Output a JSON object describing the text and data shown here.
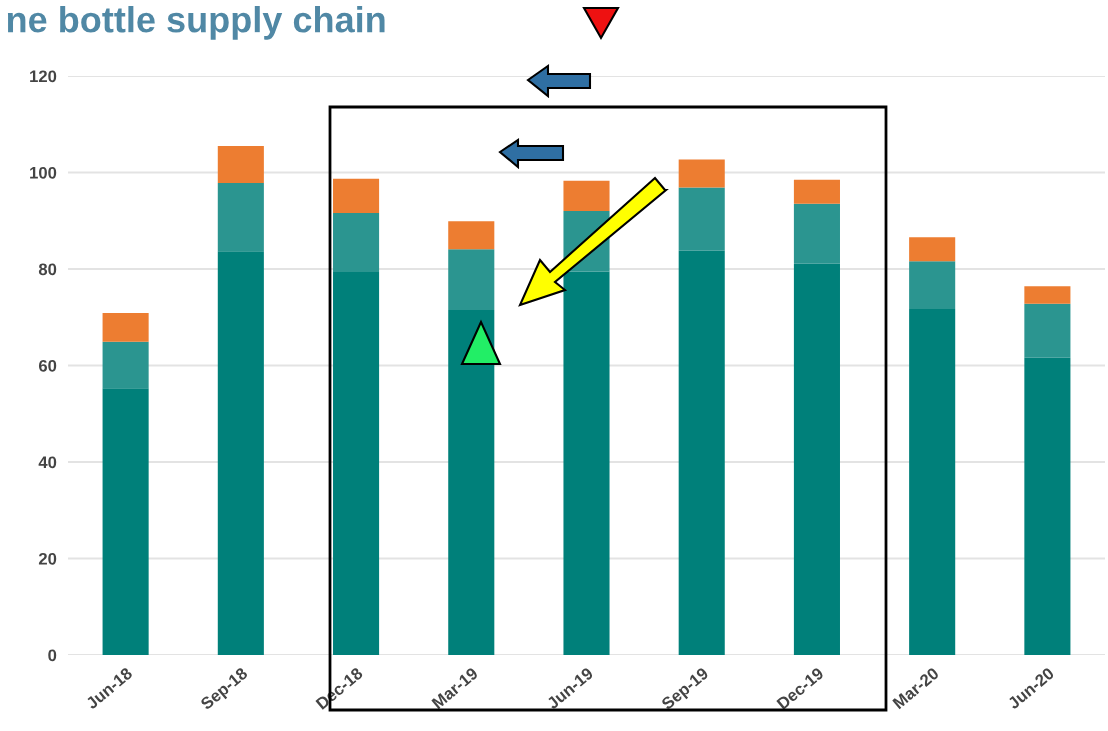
{
  "chart_data": {
    "type": "bar",
    "title": "ne bottle supply chain",
    "stacked": true,
    "categories": [
      "Jun-18",
      "Sep-18",
      "Dec-18",
      "Mar-19",
      "Jun-19",
      "Sep-19",
      "Dec-19",
      "Mar-20",
      "Jun-20"
    ],
    "series": [
      {
        "color": "#00807a",
        "values": [
          55.3,
          83.7,
          79.4,
          71.5,
          79.5,
          83.8,
          81.1,
          71.7,
          61.6
        ]
      },
      {
        "color": "#2b9590",
        "values": [
          9.6,
          14.1,
          12.2,
          12.6,
          12.5,
          13.1,
          12.4,
          9.9,
          11.2
        ]
      },
      {
        "color": "#ed7d31",
        "values": [
          6.0,
          7.7,
          7.1,
          5.8,
          6.3,
          5.8,
          5.0,
          5.0,
          3.6
        ]
      }
    ],
    "ylim": [
      0,
      120
    ],
    "yticks": [
      0,
      20,
      40,
      60,
      80,
      100,
      120
    ],
    "grid": "y",
    "legend": false
  }
}
